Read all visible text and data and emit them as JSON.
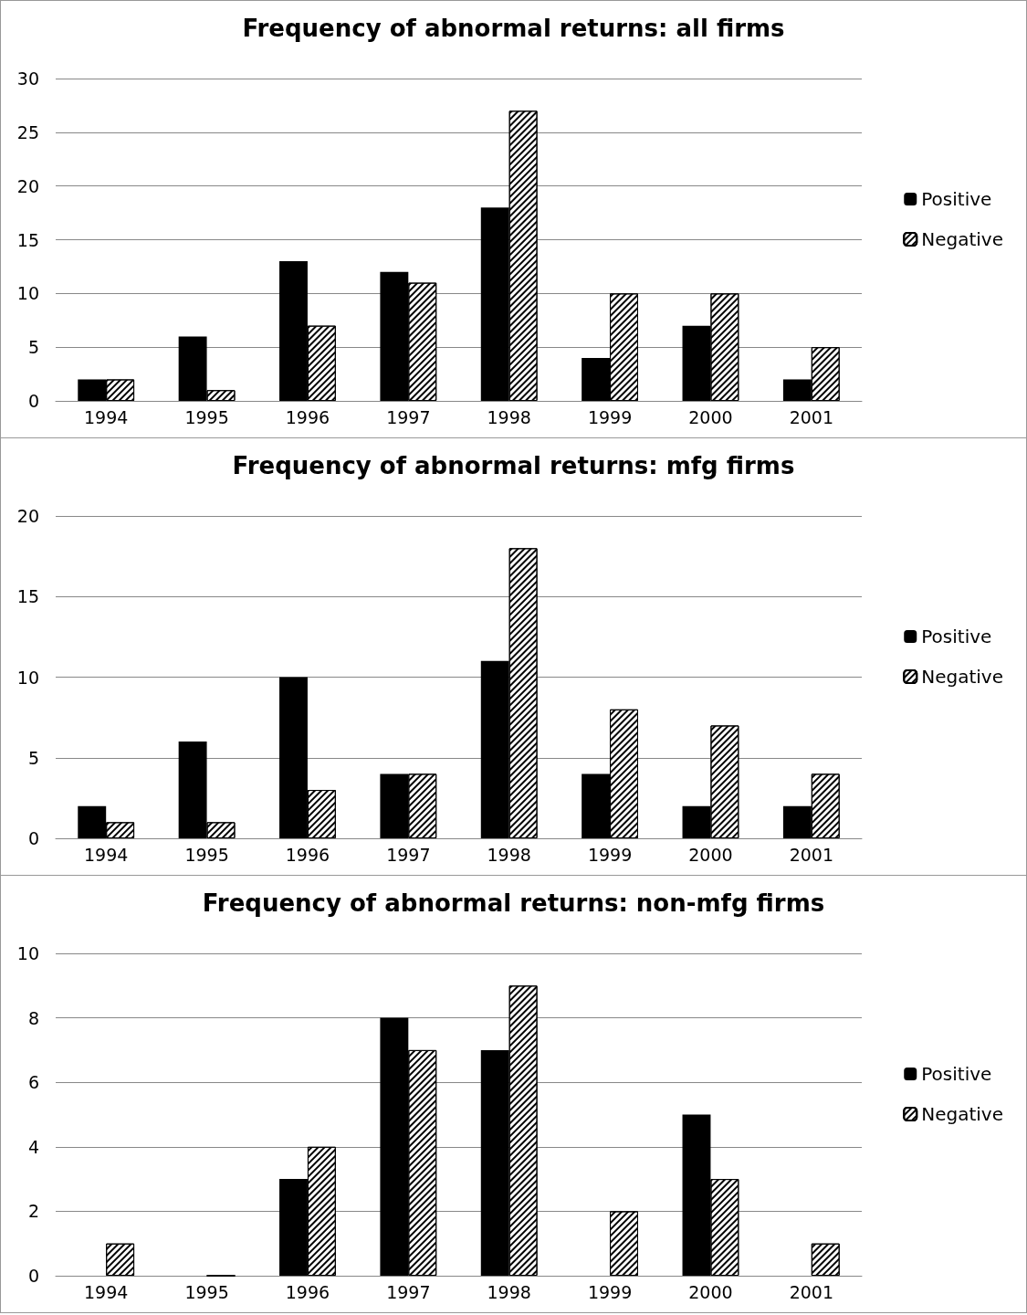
{
  "chart_data": [
    {
      "type": "bar",
      "title": "Frequency of abnormal returns: all firms",
      "categories": [
        "1994",
        "1995",
        "1996",
        "1997",
        "1998",
        "1999",
        "2000",
        "2001"
      ],
      "series": [
        {
          "name": "Positive",
          "color": "#000000",
          "values": [
            2,
            6,
            13,
            12,
            18,
            4,
            7,
            2
          ]
        },
        {
          "name": "Negative",
          "color": "#ffffff",
          "values": [
            2,
            1,
            7,
            11,
            27,
            10,
            10,
            5
          ]
        }
      ],
      "ylim": [
        0,
        30
      ],
      "yticks": [
        0,
        5,
        10,
        15,
        20,
        25,
        30
      ],
      "grid": "y",
      "legend": "right"
    },
    {
      "type": "bar",
      "title": "Frequency of abnormal returns: mfg firms",
      "categories": [
        "1994",
        "1995",
        "1996",
        "1997",
        "1998",
        "1999",
        "2000",
        "2001"
      ],
      "series": [
        {
          "name": "Positive",
          "color": "#000000",
          "values": [
            2,
            6,
            10,
            4,
            11,
            4,
            2,
            2
          ]
        },
        {
          "name": "Negative",
          "color": "#ffffff",
          "values": [
            1,
            1,
            3,
            4,
            18,
            8,
            7,
            4
          ]
        }
      ],
      "ylim": [
        0,
        20
      ],
      "yticks": [
        0,
        5,
        10,
        15,
        20
      ],
      "grid": "y",
      "legend": "right"
    },
    {
      "type": "bar",
      "title": "Frequency of abnormal returns: non-mfg firms",
      "categories": [
        "1994",
        "1995",
        "1996",
        "1997",
        "1998",
        "1999",
        "2000",
        "2001"
      ],
      "series": [
        {
          "name": "Positive",
          "color": "#000000",
          "values": [
            0,
            0,
            3,
            8,
            7,
            0,
            5,
            0
          ]
        },
        {
          "name": "Negative",
          "color": "#ffffff",
          "values": [
            1,
            0,
            4,
            7,
            9,
            2,
            3,
            1
          ]
        }
      ],
      "ylim": [
        0,
        10
      ],
      "yticks": [
        0,
        2,
        4,
        6,
        8,
        10
      ],
      "grid": "y",
      "legend": "right"
    }
  ]
}
